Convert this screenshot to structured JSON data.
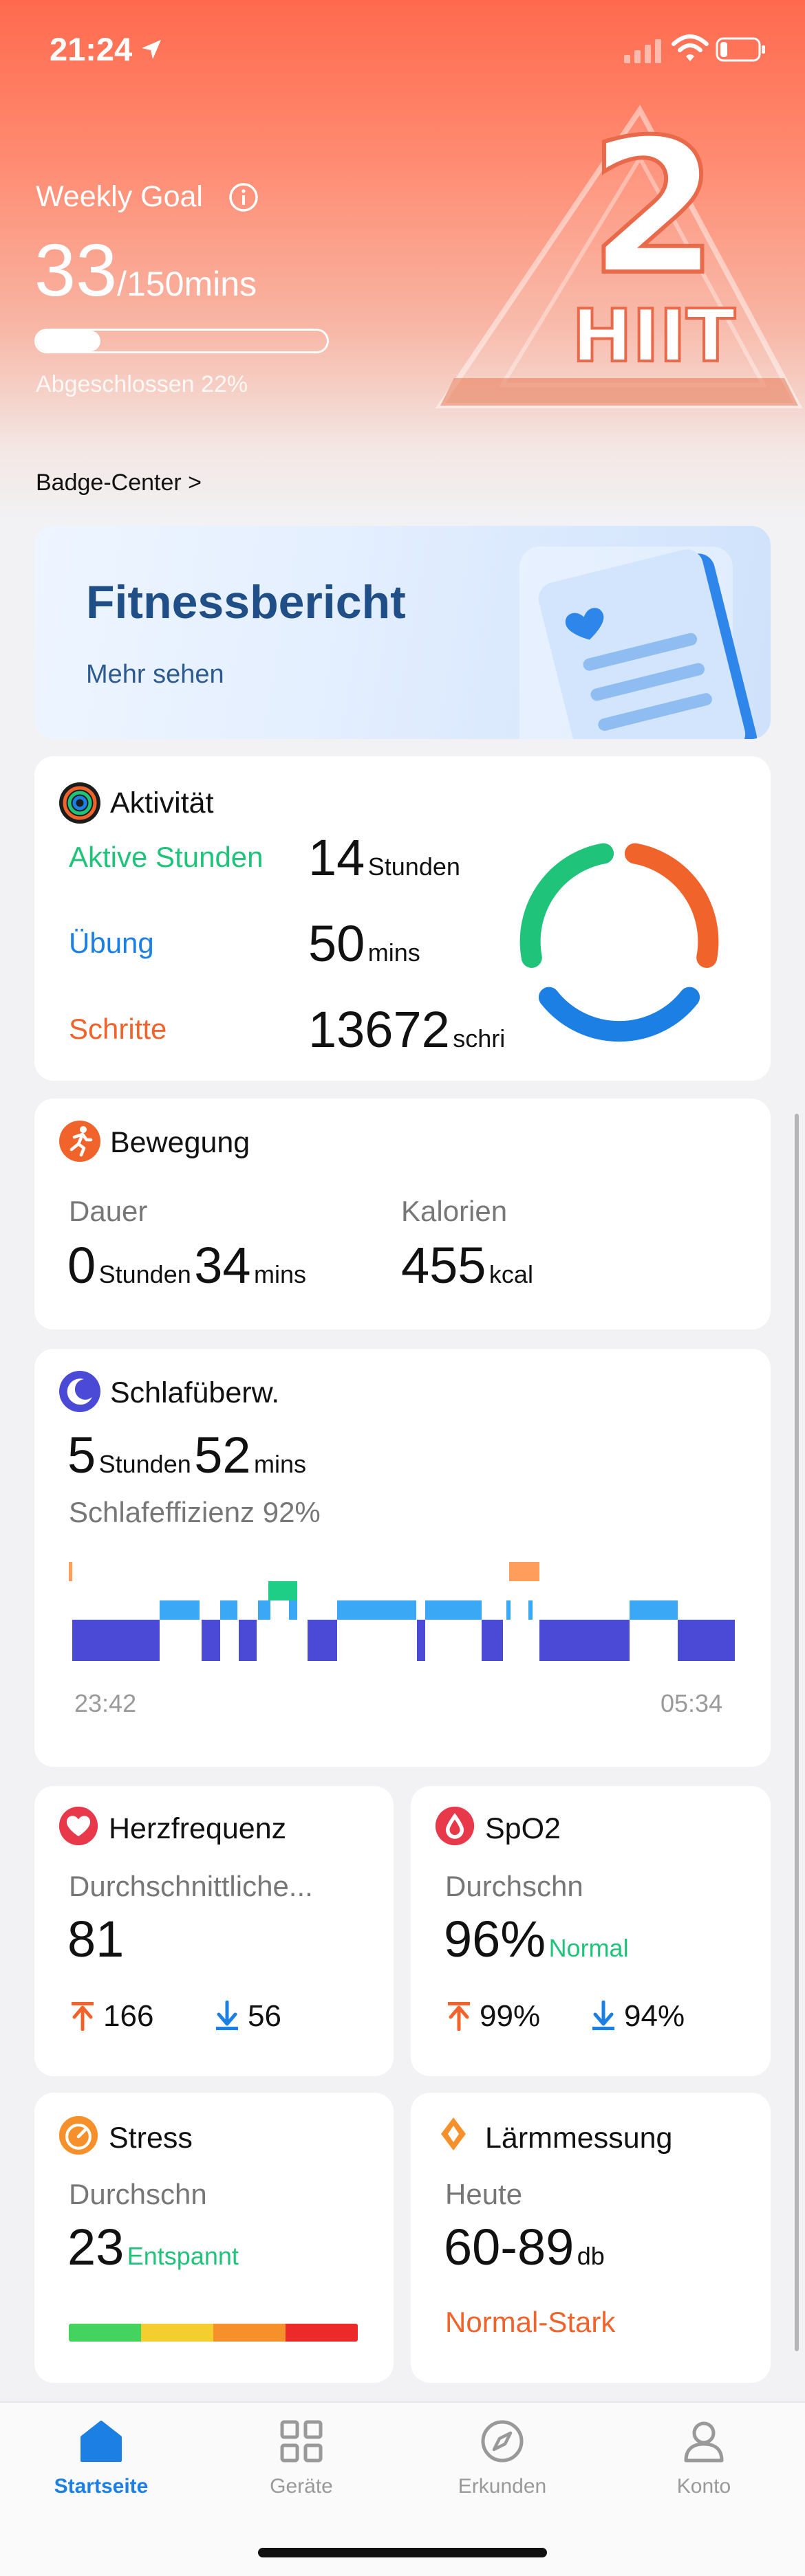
{
  "status_bar": {
    "time": "21:24"
  },
  "weekly_goal": {
    "title": "Weekly Goal",
    "value": "33",
    "target": "/150mins",
    "progress_fraction": 0.22,
    "completed_text": "Abgeschlossen 22%"
  },
  "hero_art": {
    "number": "2",
    "label": "HIIT"
  },
  "badge_center": {
    "label": "Badge-Center >"
  },
  "fitness_report": {
    "title": "Fitnessbericht",
    "more": "Mehr sehen"
  },
  "activity": {
    "title": "Aktivität",
    "rows": [
      {
        "label": "Aktive Stunden",
        "value": "14",
        "unit": "Stunden",
        "color": "#1fc47a"
      },
      {
        "label": "Übung",
        "value": "50",
        "unit": "mins",
        "color": "#1b7fe3"
      },
      {
        "label": "Schritte",
        "value": "13672",
        "unit": "schri",
        "color": "#f0642c"
      }
    ]
  },
  "movement": {
    "title": "Bewegung",
    "duration_label": "Dauer",
    "duration_hours": "0",
    "duration_hours_unit": "Stunden",
    "duration_mins": "34",
    "duration_mins_unit": "mins",
    "calories_label": "Kalorien",
    "calories_value": "455",
    "calories_unit": "kcal"
  },
  "sleep": {
    "title": "Schlafüberw.",
    "hours": "5",
    "hours_unit": "Stunden",
    "mins": "52",
    "mins_unit": "mins",
    "efficiency": "Schlafeffizienz 92%",
    "start_time": "23:42",
    "end_time": "05:34",
    "colors": {
      "deep": "#4a4ad6",
      "light": "#3aa8f5",
      "rem": "#1fce86",
      "awake": "#ff9d5c"
    }
  },
  "heart_rate": {
    "title": "Herzfrequenz",
    "subtitle": "Durchschnittliche...",
    "value": "81",
    "max": "166",
    "min": "56"
  },
  "spo2": {
    "title": "SpO2",
    "subtitle": "Durchschn",
    "value": "96%",
    "status": "Normal",
    "max": "99%",
    "min": "94%"
  },
  "stress": {
    "title": "Stress",
    "subtitle": "Durchschn",
    "value": "23",
    "status": "Entspannt"
  },
  "noise": {
    "title": "Lärmmessung",
    "subtitle": "Heute",
    "value": "60-89",
    "unit": "db",
    "status": "Normal-Stark"
  },
  "tabbar": {
    "tabs": [
      {
        "label": "Startseite",
        "icon": "home-icon",
        "active": true
      },
      {
        "label": "Geräte",
        "icon": "grid-icon",
        "active": false
      },
      {
        "label": "Erkunden",
        "icon": "compass-icon",
        "active": false
      },
      {
        "label": "Konto",
        "icon": "person-icon",
        "active": false
      }
    ]
  }
}
